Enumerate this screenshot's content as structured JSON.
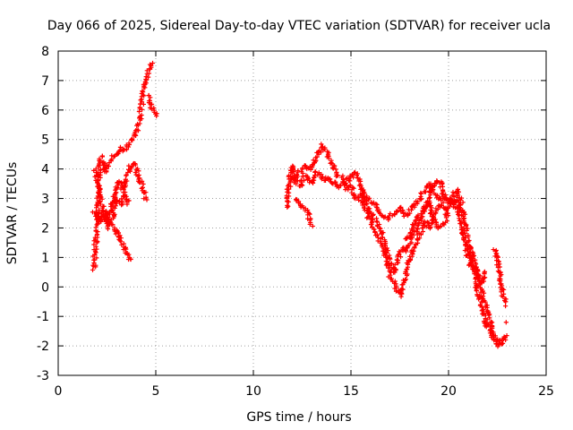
{
  "chart_data": {
    "type": "scatter",
    "title": "Day 066 of 2025, Sidereal Day-to-day VTEC variation (SDTVAR) for receiver ucla",
    "xlabel": "GPS time / hours",
    "ylabel": "SDTVAR / TECUs",
    "xlim": [
      0,
      25
    ],
    "ylim": [
      -3,
      8
    ],
    "xticks": [
      0,
      5,
      10,
      15,
      20,
      25
    ],
    "yticks": [
      -3,
      -2,
      -1,
      0,
      1,
      2,
      3,
      4,
      5,
      6,
      7,
      8
    ],
    "grid": true,
    "marker": "+",
    "color": "#ff0000",
    "series": [
      {
        "name": "SDTVAR",
        "traces": [
          [
            [
              1.85,
              0.6
            ],
            [
              1.9,
              1.4
            ],
            [
              2.0,
              2.3
            ],
            [
              2.1,
              3.6
            ],
            [
              2.2,
              4.4
            ],
            [
              2.3,
              4.2
            ],
            [
              2.4,
              3.9
            ],
            [
              2.6,
              4.2
            ],
            [
              2.8,
              4.4
            ],
            [
              3.0,
              4.5
            ],
            [
              3.2,
              4.7
            ],
            [
              3.4,
              4.6
            ],
            [
              3.6,
              4.8
            ],
            [
              3.8,
              5.0
            ],
            [
              4.0,
              5.3
            ],
            [
              4.2,
              5.7
            ],
            [
              4.3,
              6.3
            ],
            [
              4.45,
              6.9
            ],
            [
              4.6,
              7.3
            ],
            [
              4.75,
              7.6
            ]
          ],
          [
            [
              1.85,
              4.0
            ],
            [
              2.0,
              3.7
            ],
            [
              2.1,
              3.2
            ],
            [
              2.3,
              2.7
            ],
            [
              2.5,
              2.2
            ],
            [
              2.7,
              2.7
            ],
            [
              2.9,
              3.2
            ],
            [
              3.1,
              3.6
            ],
            [
              3.3,
              3.3
            ],
            [
              3.5,
              3.6
            ],
            [
              3.7,
              4.1
            ],
            [
              3.9,
              4.2
            ],
            [
              4.1,
              3.8
            ],
            [
              4.3,
              3.4
            ],
            [
              4.5,
              3.0
            ]
          ],
          [
            [
              1.85,
              2.5
            ],
            [
              2.0,
              2.3
            ],
            [
              2.2,
              2.2
            ],
            [
              2.4,
              2.6
            ],
            [
              2.6,
              2.0
            ],
            [
              2.8,
              2.4
            ],
            [
              3.0,
              3.0
            ],
            [
              3.2,
              2.8
            ],
            [
              3.4,
              3.2
            ],
            [
              3.6,
              2.8
            ]
          ],
          [
            [
              2.0,
              2.6
            ],
            [
              2.3,
              2.4
            ],
            [
              2.6,
              2.2
            ],
            [
              2.9,
              2.0
            ],
            [
              3.2,
              1.6
            ],
            [
              3.5,
              1.2
            ],
            [
              3.75,
              0.9
            ]
          ],
          [
            [
              4.6,
              6.5
            ],
            [
              4.8,
              6.1
            ],
            [
              5.0,
              5.8
            ]
          ],
          [
            [
              11.7,
              2.7
            ],
            [
              11.8,
              3.3
            ],
            [
              11.9,
              3.9
            ],
            [
              12.0,
              4.1
            ],
            [
              12.2,
              3.6
            ],
            [
              12.4,
              3.4
            ],
            [
              12.6,
              3.8
            ],
            [
              12.8,
              3.7
            ],
            [
              13.0,
              3.5
            ],
            [
              13.2,
              3.9
            ],
            [
              13.4,
              3.8
            ],
            [
              13.6,
              3.6
            ],
            [
              13.8,
              3.7
            ],
            [
              14.0,
              3.6
            ],
            [
              14.2,
              3.5
            ],
            [
              14.4,
              3.4
            ],
            [
              14.6,
              3.6
            ],
            [
              14.8,
              3.3
            ],
            [
              15.0,
              3.4
            ],
            [
              15.2,
              3.1
            ],
            [
              15.4,
              3.0
            ],
            [
              15.6,
              3.2
            ],
            [
              15.8,
              2.7
            ],
            [
              16.0,
              2.6
            ],
            [
              16.2,
              2.3
            ],
            [
              16.4,
              2.1
            ],
            [
              16.6,
              1.8
            ],
            [
              16.8,
              1.3
            ],
            [
              17.0,
              0.8
            ],
            [
              17.2,
              0.5
            ],
            [
              17.4,
              0.9
            ],
            [
              17.6,
              1.3
            ],
            [
              17.8,
              1.2
            ],
            [
              18.0,
              1.5
            ],
            [
              18.2,
              1.8
            ],
            [
              18.4,
              2.0
            ],
            [
              18.6,
              2.3
            ],
            [
              18.8,
              2.7
            ],
            [
              19.0,
              3.1
            ],
            [
              19.2,
              3.4
            ],
            [
              19.4,
              3.6
            ],
            [
              19.6,
              3.5
            ],
            [
              19.8,
              3.0
            ],
            [
              20.0,
              2.9
            ],
            [
              20.2,
              3.1
            ],
            [
              20.4,
              3.3
            ],
            [
              20.6,
              3.0
            ],
            [
              20.8,
              2.3
            ],
            [
              21.0,
              1.4
            ],
            [
              21.2,
              0.8
            ],
            [
              21.4,
              0.6
            ],
            [
              21.6,
              0.2
            ],
            [
              21.8,
              -0.4
            ],
            [
              22.0,
              -0.9
            ],
            [
              22.2,
              -1.4
            ],
            [
              22.4,
              -1.8
            ],
            [
              22.6,
              -2.0
            ],
            [
              22.8,
              -1.9
            ],
            [
              22.9,
              -1.7
            ]
          ],
          [
            [
              12.0,
              3.6
            ],
            [
              12.3,
              3.9
            ],
            [
              12.6,
              4.1
            ],
            [
              12.9,
              4.0
            ],
            [
              13.2,
              4.3
            ],
            [
              13.5,
              4.8
            ],
            [
              13.8,
              4.5
            ],
            [
              14.0,
              4.2
            ],
            [
              14.3,
              3.8
            ],
            [
              14.6,
              3.7
            ],
            [
              14.9,
              3.6
            ],
            [
              15.2,
              3.9
            ],
            [
              15.5,
              3.4
            ],
            [
              15.8,
              3.0
            ],
            [
              16.0,
              2.9
            ],
            [
              16.3,
              2.7
            ],
            [
              16.6,
              2.4
            ],
            [
              16.9,
              2.3
            ],
            [
              17.2,
              2.5
            ],
            [
              17.5,
              2.7
            ],
            [
              17.8,
              2.4
            ],
            [
              18.1,
              2.6
            ],
            [
              18.4,
              2.9
            ],
            [
              18.7,
              3.2
            ],
            [
              19.0,
              3.5
            ],
            [
              19.3,
              3.2
            ],
            [
              19.6,
              2.9
            ],
            [
              19.9,
              3.0
            ],
            [
              20.2,
              2.8
            ],
            [
              20.5,
              2.7
            ],
            [
              20.8,
              2.5
            ]
          ],
          [
            [
              12.2,
              3.0
            ],
            [
              12.5,
              2.7
            ],
            [
              12.8,
              2.5
            ],
            [
              13.0,
              2.1
            ]
          ],
          [
            [
              15.6,
              2.9
            ],
            [
              15.9,
              2.4
            ],
            [
              16.2,
              1.9
            ],
            [
              16.5,
              1.5
            ],
            [
              16.8,
              1.0
            ],
            [
              17.0,
              0.4
            ],
            [
              17.2,
              0.1
            ],
            [
              17.4,
              -0.1
            ],
            [
              17.6,
              -0.3
            ],
            [
              17.8,
              0.4
            ],
            [
              18.0,
              0.9
            ],
            [
              18.2,
              1.3
            ],
            [
              18.4,
              1.6
            ],
            [
              18.6,
              1.9
            ],
            [
              18.8,
              2.2
            ],
            [
              19.0,
              2.0
            ],
            [
              19.3,
              2.5
            ],
            [
              19.6,
              2.8
            ],
            [
              19.9,
              2.6
            ]
          ],
          [
            [
              17.8,
              1.6
            ],
            [
              18.1,
              1.9
            ],
            [
              18.4,
              2.4
            ],
            [
              18.7,
              2.6
            ],
            [
              19.0,
              2.9
            ],
            [
              19.2,
              2.3
            ],
            [
              19.5,
              2.0
            ],
            [
              19.8,
              2.2
            ],
            [
              20.1,
              2.8
            ],
            [
              20.4,
              3.0
            ],
            [
              20.7,
              2.0
            ],
            [
              21.0,
              1.0
            ],
            [
              21.3,
              0.5
            ],
            [
              21.6,
              -0.5
            ],
            [
              21.9,
              -1.2
            ],
            [
              22.2,
              -1.6
            ],
            [
              22.5,
              -1.9
            ],
            [
              22.8,
              -1.7
            ]
          ],
          [
            [
              21.1,
              1.4
            ],
            [
              21.3,
              1.0
            ],
            [
              21.5,
              0.3
            ],
            [
              21.7,
              0.1
            ],
            [
              21.9,
              0.5
            ]
          ],
          [
            [
              22.3,
              1.3
            ],
            [
              22.5,
              1.0
            ],
            [
              22.6,
              0.5
            ],
            [
              22.7,
              0.1
            ],
            [
              22.8,
              -0.3
            ],
            [
              22.9,
              -0.6
            ]
          ]
        ],
        "isolated_points": [
          [
            22.95,
            -1.2
          ]
        ]
      }
    ]
  }
}
